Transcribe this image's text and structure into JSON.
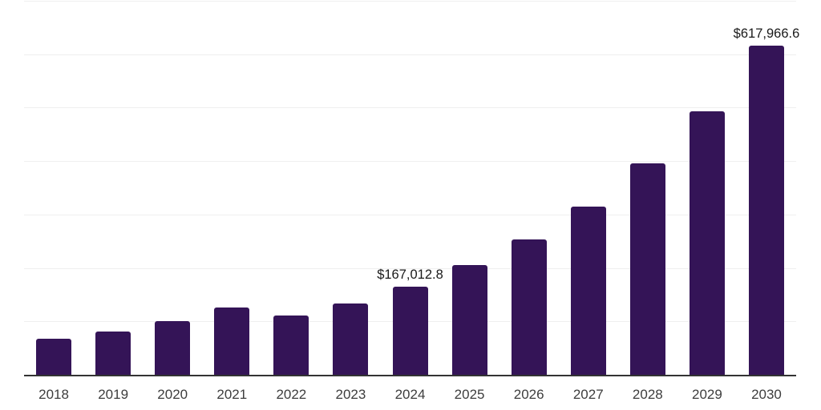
{
  "chart_data": {
    "type": "bar",
    "title": "",
    "xlabel": "",
    "ylabel": "",
    "categories": [
      "2018",
      "2019",
      "2020",
      "2021",
      "2022",
      "2023",
      "2024",
      "2025",
      "2026",
      "2027",
      "2028",
      "2029",
      "2030"
    ],
    "values": [
      68400,
      82300,
      101700,
      127100,
      112200,
      134200,
      167012.8,
      206900,
      254300,
      316600,
      397400,
      494600,
      617966.6
    ],
    "value_labels": {
      "2024": "$167,012.8",
      "2030": "$617,966.6"
    },
    "ylim": [
      0,
      700000
    ],
    "gridline_step": 100000,
    "grid": "horizontal",
    "legend": "none",
    "y_axis_labels_visible": false,
    "colors": {
      "bar": "#341457",
      "axis_line": "#333333",
      "gridline": "#efefef",
      "x_label_text": "#3d3d3d",
      "value_label_text": "#1a1a1a",
      "background": "#ffffff"
    }
  }
}
